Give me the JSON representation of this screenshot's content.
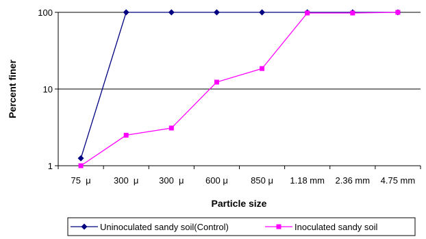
{
  "chart_data": {
    "type": "line",
    "title": "",
    "xlabel": "Particle size",
    "ylabel": "Percent finer",
    "yscale": "log",
    "ylim": [
      1,
      100
    ],
    "y_ticks": [
      "1",
      "10",
      "100"
    ],
    "categories": [
      "75  μ",
      "300  μ",
      "300  μ",
      "600 μ",
      "850 μ",
      "1.18 mm",
      "2.36 mm",
      "4.75 mm"
    ],
    "grid": "horizontal major gridlines",
    "legend": "bottom",
    "series": [
      {
        "name": "Uninoculated sandy soil(Control)",
        "color": "#000080",
        "marker": "diamond",
        "values": [
          1.25,
          100,
          100,
          100,
          100,
          100,
          100,
          100
        ]
      },
      {
        "name": "Inoculated sandy soil",
        "color": "#FF00FF",
        "marker": "square",
        "values": [
          1.0,
          2.5,
          3.1,
          12.3,
          18.5,
          98,
          98,
          100
        ]
      }
    ]
  }
}
